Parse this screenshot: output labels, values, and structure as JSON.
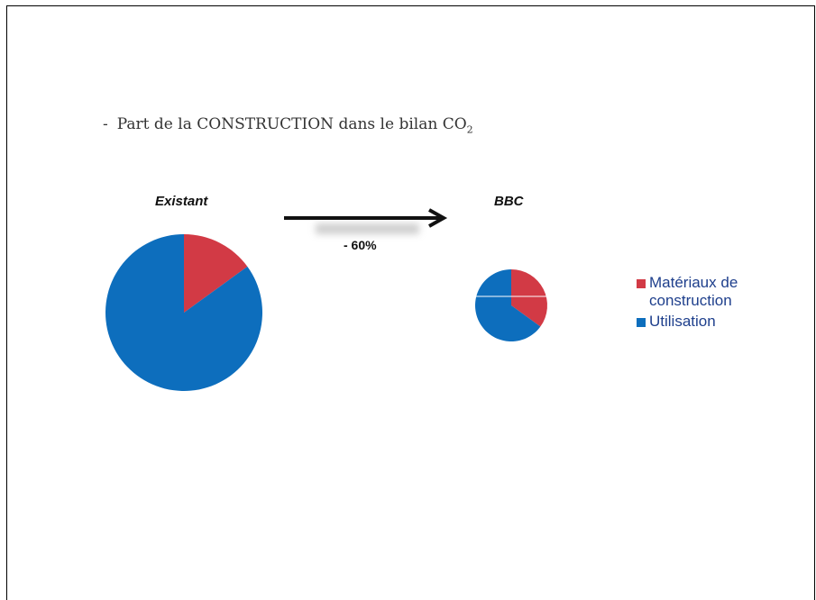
{
  "bullet": {
    "dash": "-",
    "text": "Part de la CONSTRUCTION dans le bilan CO",
    "subscript": "2"
  },
  "reduction_label": "- 60%",
  "colors": {
    "materiaux": "#d23a45",
    "utilisation": "#0d6ebd"
  },
  "chart_data": [
    {
      "type": "pie",
      "title": "Existant",
      "slices": [
        {
          "label": "Matériaux de construction",
          "value": 15
        },
        {
          "label": "Utilisation",
          "value": 85
        }
      ]
    },
    {
      "type": "pie",
      "title": "BBC",
      "slices": [
        {
          "label": "Matériaux de construction",
          "value": 35
        },
        {
          "label": "Utilisation",
          "value": 65
        }
      ]
    }
  ],
  "legend": [
    {
      "label": "Matériaux de construction",
      "color": "#d23a45"
    },
    {
      "label": "Utilisation",
      "color": "#0d6ebd"
    }
  ]
}
